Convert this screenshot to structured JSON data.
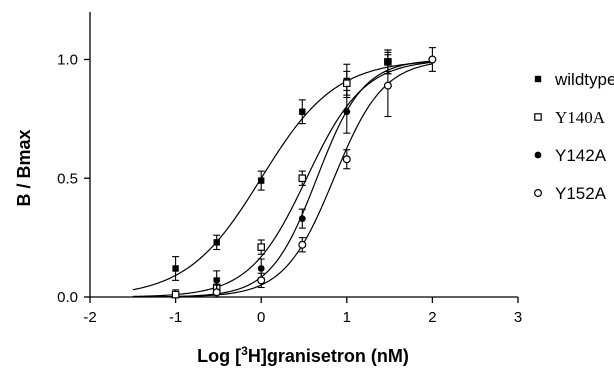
{
  "chart_data": {
    "type": "scatter",
    "xlabel_prefix": "Log [",
    "xlabel_sup": "3",
    "xlabel_suffix": "H]granisetron (nM)",
    "ylabel": "B / Bmax",
    "xlim": [
      -2,
      3
    ],
    "ylim": [
      0,
      1.2
    ],
    "x_ticks": [
      "-2",
      "-1",
      "0",
      "1",
      "2",
      "3"
    ],
    "y_ticks": [
      "0.0",
      "0.5",
      "1.0"
    ],
    "x_tick_values": [
      -2,
      -1,
      0,
      1,
      2,
      3
    ],
    "y_tick_values": [
      0,
      0.5,
      1.0
    ],
    "legend_position": "right",
    "series": [
      {
        "name": "wildtype",
        "marker": "filled-square",
        "fit": {
          "logEC50": 0.0,
          "hill": 1.0
        },
        "x": [
          -1.0,
          -0.52,
          0.0,
          0.48,
          1.0,
          1.48
        ],
        "y": [
          0.12,
          0.23,
          0.49,
          0.78,
          0.91,
          0.99
        ],
        "err": [
          0.05,
          0.03,
          0.04,
          0.05,
          0.07,
          0.05
        ]
      },
      {
        "name": "Y140A",
        "marker": "open-square",
        "fit": {
          "logEC50": 0.53,
          "hill": 1.3
        },
        "x": [
          -1.0,
          -0.52,
          0.0,
          0.48,
          1.0,
          1.48
        ],
        "y": [
          0.01,
          0.04,
          0.21,
          0.5,
          0.9,
          0.99
        ],
        "err": [
          0.02,
          0.04,
          0.03,
          0.03,
          0.05,
          0.05
        ]
      },
      {
        "name": "Y142A",
        "marker": "filled-circle",
        "fit": {
          "logEC50": 0.65,
          "hill": 1.6
        },
        "x": [
          -0.52,
          0.0,
          0.48,
          1.0,
          1.48
        ],
        "y": [
          0.07,
          0.12,
          0.33,
          0.78,
          0.99
        ],
        "err": [
          0.04,
          0.04,
          0.04,
          0.09,
          0.04
        ]
      },
      {
        "name": "Y152A",
        "marker": "open-circle",
        "fit": {
          "logEC50": 0.85,
          "hill": 1.5
        },
        "x": [
          -0.52,
          0.0,
          0.48,
          1.0,
          1.48,
          2.0
        ],
        "y": [
          0.02,
          0.07,
          0.22,
          0.58,
          0.89,
          1.0
        ],
        "err": [
          0.03,
          0.03,
          0.03,
          0.04,
          0.13,
          0.05
        ]
      }
    ]
  }
}
